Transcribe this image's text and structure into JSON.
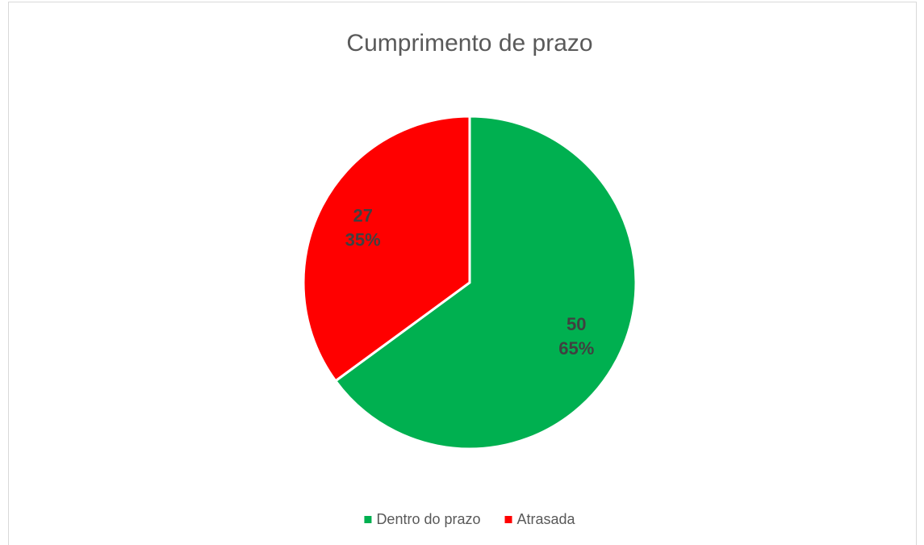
{
  "chart_data": {
    "type": "pie",
    "title": "Cumprimento de prazo",
    "categories": [
      "Dentro do prazo",
      "Atrasada"
    ],
    "values": [
      50,
      27
    ],
    "percent_labels": [
      "65%",
      "35%"
    ],
    "colors": [
      "#00b050",
      "#ff0000"
    ],
    "legend": "bottom"
  }
}
